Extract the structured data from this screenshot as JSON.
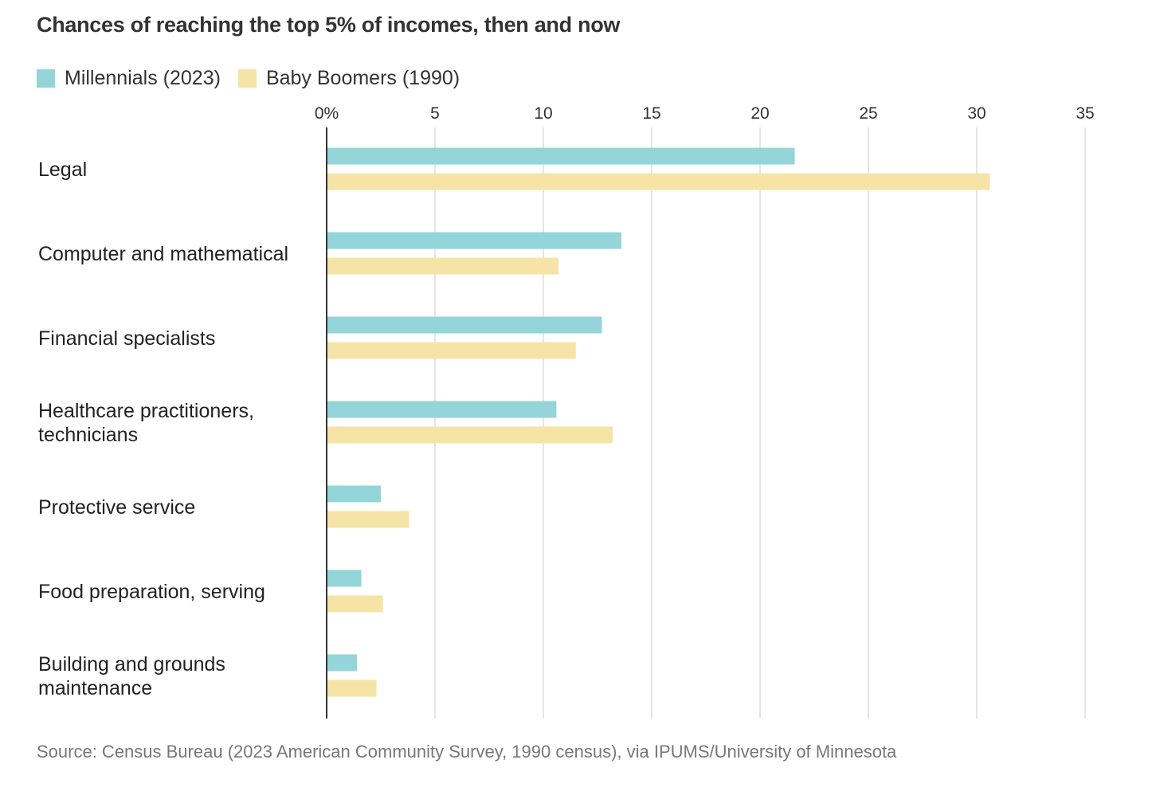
{
  "title": "Chances of reaching the top 5% of incomes, then and now",
  "legend": [
    {
      "label": "Millennials (2023)",
      "color": "#93d5d8"
    },
    {
      "label": "Baby Boomers (1990)",
      "color": "#f5e4a6"
    }
  ],
  "source": "Source: Census Bureau (2023 American Community Survey, 1990 census), via IPUMS/University of Minnesota",
  "chart_data": {
    "type": "bar",
    "orientation": "horizontal",
    "title": "Chances of reaching the top 5% of incomes, then and now",
    "categories": [
      [
        "Legal"
      ],
      [
        "Computer and mathematical"
      ],
      [
        "Financial specialists"
      ],
      [
        "Healthcare practitioners,",
        "technicians"
      ],
      [
        "Protective service"
      ],
      [
        "Food preparation, serving"
      ],
      [
        "Building and grounds",
        "maintenance"
      ]
    ],
    "series": [
      {
        "name": "Millennials (2023)",
        "color": "#93d5d8",
        "values": [
          21.6,
          13.6,
          12.7,
          10.6,
          2.5,
          1.6,
          1.4
        ]
      },
      {
        "name": "Baby Boomers (1990)",
        "color": "#f5e4a6",
        "values": [
          30.6,
          10.7,
          11.5,
          13.2,
          3.8,
          2.6,
          2.3
        ]
      }
    ],
    "xlim": [
      0,
      35
    ],
    "xticks": [
      "0%",
      "5",
      "10",
      "15",
      "20",
      "25",
      "30",
      "35"
    ],
    "tick_values": [
      0,
      5,
      10,
      15,
      20,
      25,
      30,
      35
    ],
    "grid": true,
    "legend_position": "top-left"
  }
}
